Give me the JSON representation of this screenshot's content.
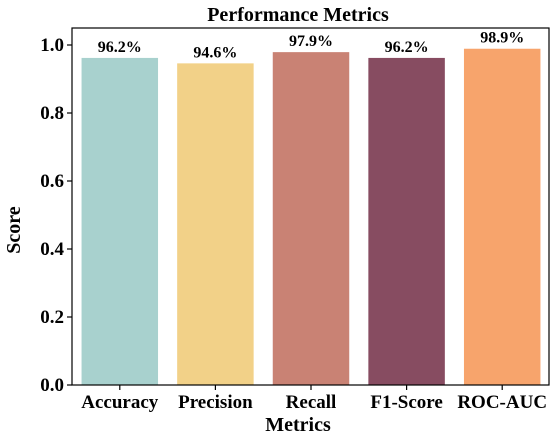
{
  "chart_data": {
    "type": "bar",
    "title": "Performance Metrics",
    "xlabel": "Metrics",
    "ylabel": "Score",
    "categories": [
      "Accuracy",
      "Precision",
      "Recall",
      "F1-Score",
      "ROC-AUC"
    ],
    "values": [
      0.962,
      0.946,
      0.979,
      0.962,
      0.989
    ],
    "data_labels": [
      "96.2%",
      "94.6%",
      "97.9%",
      "96.2%",
      "98.9%"
    ],
    "colors": [
      "#a8d1ce",
      "#f2d188",
      "#c98274",
      "#874c61",
      "#f7a46c"
    ],
    "ylim": [
      0,
      1.05
    ],
    "yticks": [
      0.0,
      0.2,
      0.4,
      0.6,
      0.8,
      1.0
    ],
    "ytick_labels": [
      "0.0",
      "0.2",
      "0.4",
      "0.6",
      "0.8",
      "1.0"
    ],
    "grid": false,
    "legend": false
  }
}
